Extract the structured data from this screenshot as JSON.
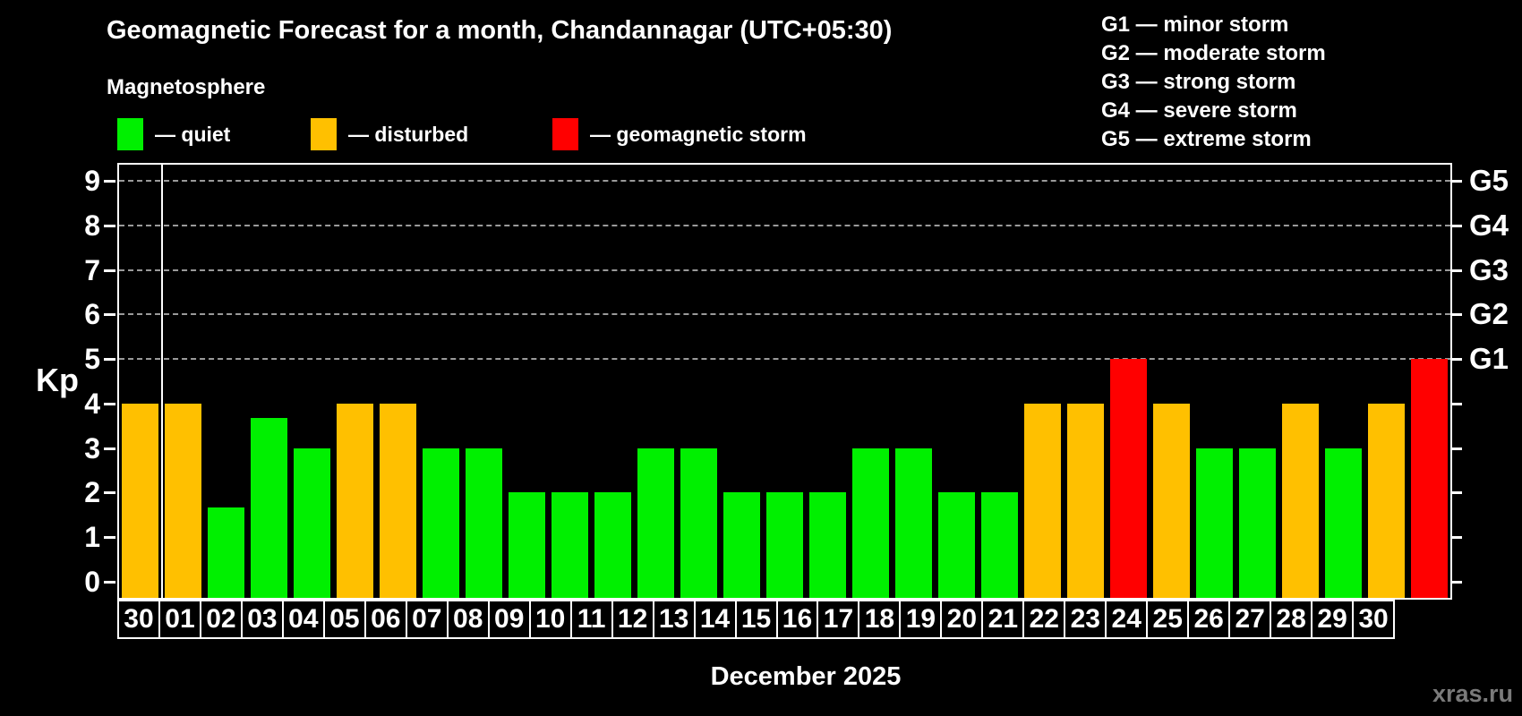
{
  "header": {
    "title": "Geomagnetic Forecast for a month, Chandannagar (UTC+05:30)",
    "subtitle": "Magnetosphere"
  },
  "legend": {
    "items": [
      {
        "key": "quiet",
        "label": "— quiet",
        "color": "#00f000"
      },
      {
        "key": "disturbed",
        "label": "— disturbed",
        "color": "#ffc000"
      },
      {
        "key": "storm",
        "label": "— geomagnetic storm",
        "color": "#ff0000"
      }
    ]
  },
  "g_legend": {
    "items": [
      {
        "label": "G1 — minor storm"
      },
      {
        "label": "G2 — moderate storm"
      },
      {
        "label": "G3 — strong storm"
      },
      {
        "label": "G4 — severe storm"
      },
      {
        "label": "G5 — extreme storm"
      }
    ]
  },
  "chart_data": {
    "type": "bar",
    "title": "Geomagnetic Forecast for a month, Chandannagar (UTC+05:30)",
    "ylabel": "Kp",
    "xlabel": "December 2025",
    "ylim": [
      0,
      9
    ],
    "yticks": [
      0,
      1,
      2,
      3,
      4,
      5,
      6,
      7,
      8,
      9
    ],
    "gridline_levels": [
      5,
      6,
      7,
      8,
      9
    ],
    "right_axis_labels": [
      {
        "kp": 5,
        "label": "G1"
      },
      {
        "kp": 6,
        "label": "G2"
      },
      {
        "kp": 7,
        "label": "G3"
      },
      {
        "kp": 8,
        "label": "G4"
      },
      {
        "kp": 9,
        "label": "G5"
      }
    ],
    "categories": [
      "30",
      "01",
      "02",
      "03",
      "04",
      "05",
      "06",
      "07",
      "08",
      "09",
      "10",
      "11",
      "12",
      "13",
      "14",
      "15",
      "16",
      "17",
      "18",
      "19",
      "20",
      "21",
      "22",
      "23",
      "24",
      "25",
      "26",
      "27",
      "28",
      "29",
      "30"
    ],
    "values": [
      4,
      4,
      1.67,
      3.67,
      3,
      4,
      4,
      3,
      3,
      2,
      2,
      2,
      3,
      3,
      2,
      2,
      2,
      3,
      3,
      2,
      2,
      4,
      4,
      5,
      4,
      3,
      3,
      4,
      3,
      4,
      5
    ],
    "statuses": [
      "disturbed",
      "disturbed",
      "quiet",
      "quiet",
      "quiet",
      "disturbed",
      "disturbed",
      "quiet",
      "quiet",
      "quiet",
      "quiet",
      "quiet",
      "quiet",
      "quiet",
      "quiet",
      "quiet",
      "quiet",
      "quiet",
      "quiet",
      "quiet",
      "quiet",
      "disturbed",
      "disturbed",
      "storm",
      "disturbed",
      "quiet",
      "quiet",
      "disturbed",
      "quiet",
      "disturbed",
      "storm"
    ],
    "status_colors": {
      "quiet": "#00f000",
      "disturbed": "#ffc000",
      "storm": "#ff0000"
    },
    "month_separator_after_index": 0,
    "grid": true,
    "legend_position": "top"
  },
  "footer": {
    "month_label": "December 2025",
    "watermark": "xras.ru"
  }
}
